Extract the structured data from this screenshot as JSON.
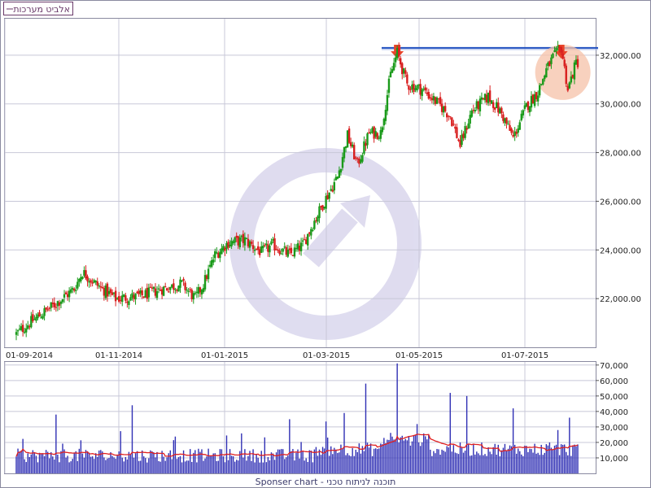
{
  "legend": {
    "label": "אלביט מערכות"
  },
  "footer": {
    "text": "Sponser chart - תוכנה לניתוח טכני"
  },
  "colors": {
    "up_candle": "#1a9a1a",
    "down_candle": "#d81e1e",
    "volume_bar": "#2f2fb4",
    "volume_ma": "#e02020",
    "resistance_line": "#1f4fbf",
    "arrow": "#e8442a",
    "highlight_circle": "#f6c2a8",
    "grid": "#c8c8d8",
    "watermark": "#dcd9ee"
  },
  "chart_data": [
    {
      "type": "candlestick",
      "x_tick_labels": [
        "01-09-2014",
        "01-11-2014",
        "01-01-2015",
        "01-03-2015",
        "01-05-2015",
        "01-07-2015"
      ],
      "y_tick_labels": [
        "22,000.00",
        "24,000.00",
        "26,000.00",
        "28,000.00",
        "30,000.00",
        "32,000.00"
      ],
      "ylim": [
        20000,
        33500
      ],
      "resistance_level": 32300,
      "markers": [
        {
          "type": "down-arrow",
          "date_index": 230
        },
        {
          "type": "down-arrow-highlight",
          "date_index": 329
        }
      ],
      "price_path_control_points": [
        [
          0,
          20550
        ],
        [
          8,
          21000
        ],
        [
          22,
          21700
        ],
        [
          35,
          22400
        ],
        [
          40,
          23100
        ],
        [
          48,
          22600
        ],
        [
          60,
          22000
        ],
        [
          75,
          22100
        ],
        [
          88,
          22400
        ],
        [
          100,
          22600
        ],
        [
          108,
          22000
        ],
        [
          113,
          22600
        ],
        [
          120,
          23800
        ],
        [
          128,
          24300
        ],
        [
          138,
          24400
        ],
        [
          148,
          23900
        ],
        [
          155,
          24200
        ],
        [
          165,
          23800
        ],
        [
          173,
          24200
        ],
        [
          180,
          25200
        ],
        [
          186,
          26000
        ],
        [
          194,
          27000
        ],
        [
          200,
          28700
        ],
        [
          206,
          27500
        ],
        [
          213,
          28800
        ],
        [
          220,
          28800
        ],
        [
          226,
          31200
        ],
        [
          230,
          32100
        ],
        [
          236,
          30800
        ],
        [
          245,
          30600
        ],
        [
          255,
          30000
        ],
        [
          262,
          29500
        ],
        [
          268,
          28300
        ],
        [
          275,
          29700
        ],
        [
          285,
          30300
        ],
        [
          293,
          29600
        ],
        [
          300,
          28600
        ],
        [
          308,
          29900
        ],
        [
          315,
          30500
        ],
        [
          320,
          31400
        ],
        [
          324,
          31900
        ],
        [
          329,
          32300
        ],
        [
          333,
          30600
        ],
        [
          338,
          31700
        ]
      ]
    },
    {
      "type": "bar+line",
      "y_tick_labels": [
        "10,000",
        "20,000",
        "30,000",
        "40,000",
        "50,000",
        "60,000",
        "70,000"
      ],
      "ylim": [
        0,
        72000
      ],
      "notable_volume_spikes": [
        {
          "date_index": 24,
          "value": 38000
        },
        {
          "date_index": 70,
          "value": 44000
        },
        {
          "date_index": 165,
          "value": 35000
        },
        {
          "date_index": 198,
          "value": 39000
        },
        {
          "date_index": 211,
          "value": 58000
        },
        {
          "date_index": 230,
          "value": 71000
        },
        {
          "date_index": 262,
          "value": 52000
        },
        {
          "date_index": 272,
          "value": 50000
        },
        {
          "date_index": 300,
          "value": 42000
        },
        {
          "date_index": 327,
          "value": 28000
        },
        {
          "date_index": 334,
          "value": 36000
        }
      ]
    }
  ]
}
